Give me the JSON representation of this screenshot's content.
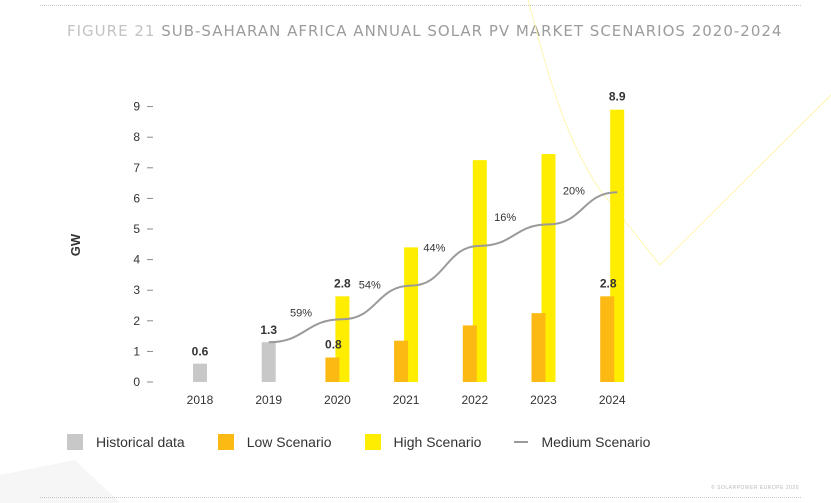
{
  "figure": {
    "number": "FIGURE 21",
    "title": "SUB-SAHARAN AFRICA ANNUAL SOLAR PV MARKET SCENARIOS 2020-2024"
  },
  "copyright": "© SOLARPOWER EUROPE 2020",
  "colors": {
    "historical": "#C8C8C8",
    "low": "#FDB913",
    "high": "#FFED00",
    "medium": "#9A9A9A",
    "title": "#9B9C9E"
  },
  "chart_data": {
    "type": "bar",
    "title": "SUB-SAHARAN AFRICA ANNUAL SOLAR PV MARKET SCENARIOS 2020-2024",
    "xlabel": "",
    "ylabel": "GW",
    "ylim": [
      0,
      9
    ],
    "yticks": [
      "0",
      "1",
      "2",
      "3",
      "4",
      "5",
      "6",
      "7",
      "8",
      "9"
    ],
    "grid": false,
    "legend_position": "bottom",
    "categories": [
      "2018",
      "2019",
      "2020",
      "2021",
      "2022",
      "2023",
      "2024"
    ],
    "series": [
      {
        "name": "Historical data",
        "type": "bar",
        "values": [
          0.6,
          1.3,
          null,
          null,
          null,
          null,
          null
        ],
        "labels": [
          "0.6",
          "1.3",
          "",
          "",
          "",
          "",
          ""
        ]
      },
      {
        "name": "Low Scenario",
        "type": "bar",
        "values": [
          null,
          null,
          0.8,
          1.35,
          1.85,
          2.25,
          2.8
        ],
        "labels": [
          "",
          "",
          "0.8",
          "",
          "",
          "",
          "2.8"
        ]
      },
      {
        "name": "High Scenario",
        "type": "bar",
        "values": [
          null,
          null,
          2.8,
          4.4,
          7.25,
          7.45,
          8.9
        ],
        "labels": [
          "",
          "",
          "2.8",
          "",
          "",
          "",
          "8.9"
        ]
      },
      {
        "name": "Medium Scenario",
        "type": "line",
        "values": [
          null,
          1.3,
          2.05,
          3.15,
          4.45,
          5.15,
          6.2
        ]
      }
    ],
    "annotations": [
      {
        "text": "59%",
        "between": [
          "2019",
          "2020"
        ]
      },
      {
        "text": "54%",
        "between": [
          "2020",
          "2021"
        ]
      },
      {
        "text": "44%",
        "between": [
          "2021",
          "2022"
        ]
      },
      {
        "text": "16%",
        "between": [
          "2022",
          "2023"
        ]
      },
      {
        "text": "20%",
        "between": [
          "2023",
          "2024"
        ]
      }
    ]
  },
  "legend": [
    {
      "label": "Historical data",
      "kind": "swatch",
      "color_key": "historical"
    },
    {
      "label": "Low Scenario",
      "kind": "swatch",
      "color_key": "low"
    },
    {
      "label": "High Scenario",
      "kind": "swatch",
      "color_key": "high"
    },
    {
      "label": "Medium Scenario",
      "kind": "line",
      "color_key": "medium"
    }
  ]
}
